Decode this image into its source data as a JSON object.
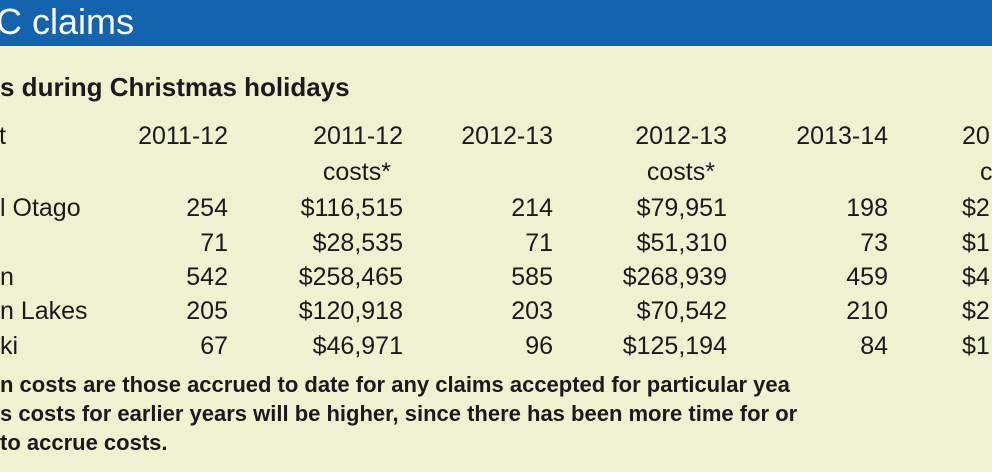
{
  "header": {
    "title": "C claims"
  },
  "subtitle": "s during Christmas holidays",
  "table": {
    "columns": [
      [
        "t"
      ],
      [
        "2011-12"
      ],
      [
        "2011-12",
        "costs*"
      ],
      [
        "2012-13"
      ],
      [
        "2012-13",
        "costs*"
      ],
      [
        "2013-14"
      ],
      [
        "20",
        "c"
      ]
    ],
    "rows": [
      [
        "l Otago",
        "254",
        "$116,515",
        "214",
        "$79,951",
        "198",
        "$2"
      ],
      [
        null,
        "71",
        "$28,535",
        "71",
        "$51,310",
        "73",
        "$1"
      ],
      [
        "n",
        "542",
        "$258,465",
        "585",
        "$268,939",
        "459",
        "$4"
      ],
      [
        "n Lakes",
        "205",
        "$120,918",
        "203",
        "$70,542",
        "210",
        "$2"
      ],
      [
        "ki",
        "67",
        "$46,971",
        "96",
        "$125,194",
        "84",
        "$1"
      ]
    ]
  },
  "footnote": [
    "n costs are those accrued to date for any claims accepted for particular yea",
    "s costs for earlier years will be higher, since there has been more time for or",
    " to accrue costs."
  ]
}
